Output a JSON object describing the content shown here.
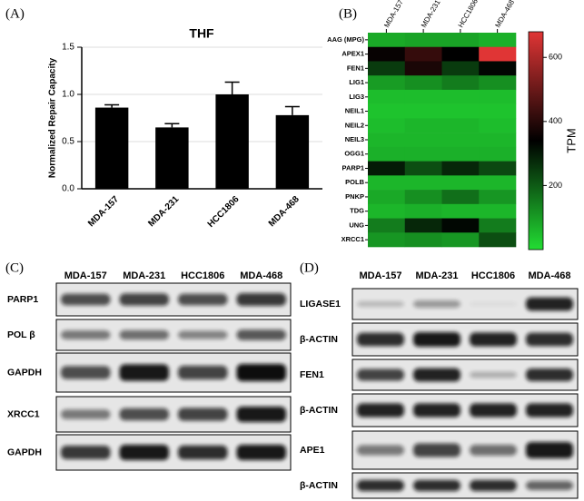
{
  "chart_data": [
    {
      "type": "bar",
      "panel": "(A)",
      "title": "THF",
      "y_label": "Normalized Repair Capacity",
      "categories": [
        "MDA-157",
        "MDA-231",
        "HCC1806",
        "MDA-468"
      ],
      "values": [
        0.86,
        0.65,
        1.0,
        0.78
      ],
      "errors": [
        0.03,
        0.04,
        0.13,
        0.09
      ],
      "color": "#000000",
      "ylim": [
        0,
        1.5
      ],
      "yticks": [
        {
          "value": 0,
          "label": "0.0"
        },
        0.5,
        {
          "value": 1,
          "label": "1.0"
        },
        1.5
      ],
      "grid": true
    },
    {
      "type": "heatmap",
      "panel": "(B)",
      "x": [
        "MDA-157",
        "MDA-231",
        "HCC1806",
        "MDA-468"
      ],
      "y": [
        "AAG (MPG)",
        "APEX1",
        "FEN1",
        "LIG1",
        "LIG3",
        "NEIL1",
        "NEIL2",
        "NEIL3",
        "OGG1",
        "PARP1",
        "POLB",
        "PNKP",
        "TDG",
        "UNG",
        "XRCC1"
      ],
      "values": [
        [
          80,
          90,
          90,
          70
        ],
        [
          350,
          420,
          340,
          680
        ],
        [
          250,
          380,
          250,
          330
        ],
        [
          100,
          120,
          150,
          120
        ],
        [
          50,
          50,
          50,
          50
        ],
        [
          40,
          40,
          40,
          40
        ],
        [
          50,
          60,
          60,
          50
        ],
        [
          60,
          60,
          60,
          60
        ],
        [
          70,
          70,
          70,
          70
        ],
        [
          300,
          220,
          280,
          230
        ],
        [
          60,
          60,
          60,
          60
        ],
        [
          80,
          120,
          170,
          110
        ],
        [
          60,
          70,
          60,
          60
        ],
        [
          150,
          280,
          330,
          150
        ],
        [
          110,
          120,
          110,
          220
        ]
      ],
      "colors": [
        "#22dd33",
        "#000000",
        "#e03535"
      ],
      "zlim": [
        0,
        680
      ],
      "zticks": [
        200,
        400,
        600
      ],
      "colorbar_label": "TPM"
    }
  ],
  "blots": [
    {
      "panel": "(C)",
      "lanes": [
        "MDA-157",
        "MDA-231",
        "HCC1806",
        "MDA-468"
      ],
      "rows": [
        "PARP1",
        "POL β",
        "GAPDH",
        "XRCC1",
        "GAPDH"
      ]
    },
    {
      "panel": "(D)",
      "lanes": [
        "MDA-157",
        "MDA-231",
        "HCC1806",
        "MDA-468"
      ],
      "rows": [
        "LIGASE1",
        "β-ACTIN",
        "FEN1",
        "β-ACTIN",
        "APE1",
        "β-ACTIN"
      ]
    }
  ]
}
